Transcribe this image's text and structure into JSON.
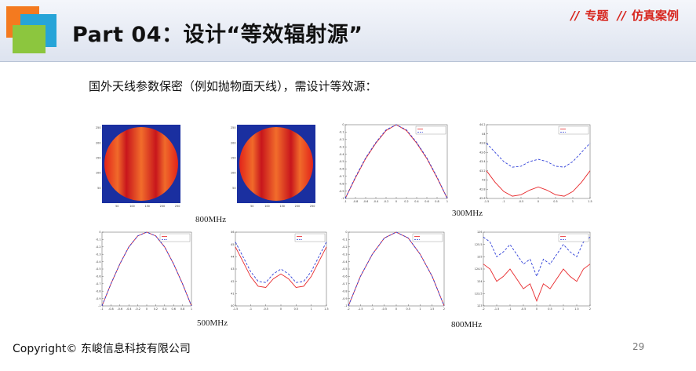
{
  "slide": {
    "title": "Part 04：设计“等效辐射源”",
    "tag_items": [
      {
        "slash": "//",
        "label": "专题"
      },
      {
        "slash": "//",
        "label": "仿真案例"
      }
    ],
    "subtitle": "国外天线参数保密（例如抛物面天线），需设计等效源：",
    "freq_labels": [
      "800MHz",
      "300MHz",
      "500MHz",
      "800MHz"
    ],
    "footer": "Copyright© 东峻信息科技有限公司",
    "page_number": "29"
  },
  "colors": {
    "accent_red": "#d7261e",
    "series_red": "#e8282b",
    "series_blue": "#2f3fd8",
    "heatmap_bg": "#1a2fa0"
  },
  "chart_data": [
    {
      "type": "heatmap",
      "title": "",
      "xlabel": "",
      "ylabel": "",
      "xlim": [
        0,
        260
      ],
      "ylim": [
        0,
        260
      ],
      "xticks": [
        50,
        100,
        150,
        200,
        250
      ],
      "yticks": [
        50,
        100,
        150,
        200,
        250
      ]
    },
    {
      "type": "heatmap",
      "title": "",
      "xlabel": "",
      "ylabel": "",
      "xlim": [
        0,
        260
      ],
      "ylim": [
        0,
        260
      ],
      "xticks": [
        50,
        100,
        150,
        200,
        250
      ],
      "yticks": [
        50,
        100,
        150,
        200,
        250
      ]
    },
    {
      "type": "line",
      "title": "",
      "xlabel": "",
      "ylabel": "",
      "xlim": [
        -1,
        1
      ],
      "ylim": [
        -1,
        0
      ],
      "xticks": [
        -1,
        -0.8,
        -0.6,
        -0.4,
        -0.2,
        0,
        0.2,
        0.4,
        0.6,
        0.8,
        1
      ],
      "yticks": [
        0,
        -0.1,
        -0.2,
        -0.3,
        -0.4,
        -0.5,
        -0.6,
        -0.7,
        -0.8,
        -0.9,
        -1
      ],
      "legend": [
        "",
        ""
      ],
      "x": [
        -1,
        -0.8,
        -0.6,
        -0.4,
        -0.2,
        0,
        0.2,
        0.4,
        0.6,
        0.8,
        1
      ],
      "series": [
        {
          "values": [
            -1,
            -0.72,
            -0.46,
            -0.25,
            -0.08,
            0,
            -0.08,
            -0.25,
            -0.46,
            -0.72,
            -1
          ]
        },
        {
          "values": [
            -1,
            -0.71,
            -0.45,
            -0.24,
            -0.07,
            0,
            -0.07,
            -0.24,
            -0.45,
            -0.71,
            -1
          ]
        }
      ]
    },
    {
      "type": "line",
      "title": "",
      "xlabel": "",
      "ylabel": "",
      "xlim": [
        -1.5,
        1.5
      ],
      "ylim": [
        42.6,
        44.2
      ],
      "xticks": [
        -1.5,
        -1,
        -0.5,
        0,
        0.5,
        1,
        1.5
      ],
      "yticks": [
        44.2,
        44,
        43.8,
        43.6,
        43.4,
        43.2,
        43,
        42.8,
        42.6
      ],
      "legend": [
        "",
        ""
      ],
      "x": [
        -1.5,
        -1.25,
        -1,
        -0.75,
        -0.5,
        -0.25,
        0,
        0.25,
        0.5,
        0.75,
        1,
        1.25,
        1.5
      ],
      "series": [
        {
          "values": [
            43.2,
            42.95,
            42.75,
            42.65,
            42.68,
            42.78,
            42.85,
            42.78,
            42.68,
            42.65,
            42.75,
            42.95,
            43.2
          ]
        },
        {
          "values": [
            43.8,
            43.6,
            43.4,
            43.28,
            43.3,
            43.4,
            43.45,
            43.4,
            43.3,
            43.28,
            43.4,
            43.6,
            43.8
          ]
        }
      ]
    },
    {
      "type": "line",
      "title": "",
      "xlabel": "",
      "ylabel": "",
      "xlim": [
        -1,
        1
      ],
      "ylim": [
        -1,
        0
      ],
      "xticks": [
        -1,
        -0.8,
        -0.6,
        -0.4,
        -0.2,
        0,
        0.2,
        0.4,
        0.6,
        0.8,
        1
      ],
      "yticks": [
        0,
        -0.1,
        -0.2,
        -0.3,
        -0.4,
        -0.5,
        -0.6,
        -0.7,
        -0.8,
        -0.9,
        -1
      ],
      "legend": [
        "",
        ""
      ],
      "x": [
        -1,
        -0.8,
        -0.6,
        -0.4,
        -0.2,
        0,
        0.2,
        0.4,
        0.6,
        0.8,
        1
      ],
      "series": [
        {
          "values": [
            -1,
            -0.7,
            -0.43,
            -0.2,
            -0.05,
            0,
            -0.05,
            -0.2,
            -0.43,
            -0.7,
            -1
          ]
        },
        {
          "values": [
            -1,
            -0.7,
            -0.43,
            -0.2,
            -0.05,
            0,
            -0.05,
            -0.2,
            -0.43,
            -0.7,
            -1
          ]
        }
      ]
    },
    {
      "type": "line",
      "title": "",
      "xlabel": "",
      "ylabel": "",
      "xlim": [
        -1.5,
        1.5
      ],
      "ylim": [
        40,
        46
      ],
      "xticks": [
        -1.5,
        -1,
        -0.5,
        0,
        0.5,
        1,
        1.5
      ],
      "yticks": [
        46,
        45,
        44,
        43,
        42,
        41,
        40
      ],
      "legend": [
        "",
        ""
      ],
      "x": [
        -1.5,
        -1.25,
        -1,
        -0.75,
        -0.5,
        -0.25,
        0,
        0.25,
        0.5,
        0.75,
        1,
        1.25,
        1.5
      ],
      "series": [
        {
          "values": [
            44.8,
            43.6,
            42.4,
            41.6,
            41.5,
            42.2,
            42.6,
            42.2,
            41.5,
            41.6,
            42.4,
            43.6,
            44.8
          ]
        },
        {
          "values": [
            45.2,
            44.0,
            42.8,
            42.0,
            41.9,
            42.6,
            43.0,
            42.6,
            41.9,
            42.0,
            42.8,
            44.0,
            45.2
          ]
        }
      ]
    },
    {
      "type": "line",
      "title": "",
      "xlabel": "",
      "ylabel": "",
      "xlim": [
        -2,
        2
      ],
      "ylim": [
        -1,
        0
      ],
      "xticks": [
        -2,
        -1.5,
        -1,
        -0.5,
        0,
        0.5,
        1,
        1.5,
        2
      ],
      "yticks": [
        0,
        -0.1,
        -0.2,
        -0.3,
        -0.4,
        -0.5,
        -0.6,
        -0.7,
        -0.8,
        -0.9,
        -1
      ],
      "legend": [
        "",
        ""
      ],
      "x": [
        -2,
        -1.5,
        -1,
        -0.5,
        0,
        0.5,
        1,
        1.5,
        2
      ],
      "series": [
        {
          "values": [
            -1,
            -0.6,
            -0.3,
            -0.08,
            0,
            -0.08,
            -0.3,
            -0.6,
            -1
          ]
        },
        {
          "values": [
            -1,
            -0.6,
            -0.3,
            -0.08,
            0,
            -0.08,
            -0.3,
            -0.6,
            -1
          ]
        }
      ]
    },
    {
      "type": "line",
      "title": "",
      "xlabel": "",
      "ylabel": "",
      "xlim": [
        -2,
        2
      ],
      "ylim": [
        123,
        126
      ],
      "xticks": [
        -2,
        -1.5,
        -1,
        -0.5,
        0,
        0.5,
        1,
        1.5,
        2
      ],
      "yticks": [
        126,
        125.5,
        125,
        124.5,
        124,
        123.5,
        123
      ],
      "legend": [
        "",
        ""
      ],
      "x": [
        -2,
        -1.75,
        -1.5,
        -1.25,
        -1,
        -0.75,
        -0.5,
        -0.25,
        0,
        0.25,
        0.5,
        0.75,
        1,
        1.25,
        1.5,
        1.75,
        2
      ],
      "series": [
        {
          "values": [
            124.7,
            124.5,
            124.0,
            124.2,
            124.5,
            124.1,
            123.7,
            123.9,
            123.2,
            123.9,
            123.7,
            124.1,
            124.5,
            124.2,
            124.0,
            124.5,
            124.7
          ]
        },
        {
          "values": [
            125.8,
            125.6,
            125.0,
            125.2,
            125.5,
            125.1,
            124.7,
            124.9,
            124.2,
            124.9,
            124.7,
            125.1,
            125.5,
            125.2,
            125.0,
            125.6,
            125.8
          ]
        }
      ]
    }
  ]
}
